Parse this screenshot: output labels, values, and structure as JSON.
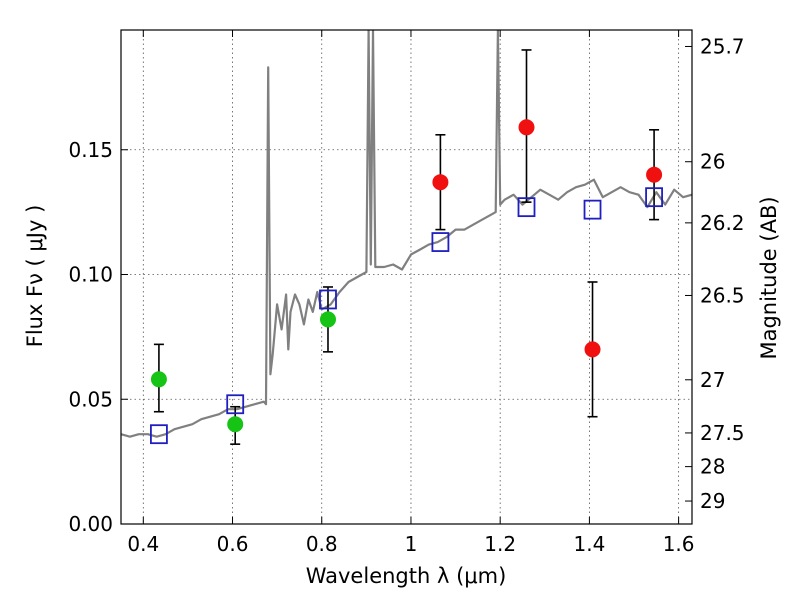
{
  "chart_data": {
    "type": "scatter",
    "xlabel": "Wavelength  λ (μm)",
    "ylabel": "Flux  Fν  ( μJy )",
    "ylabel_right": "Magnitude (AB)",
    "xlim": [
      0.35,
      1.63
    ],
    "ylim": [
      0.0,
      0.198
    ],
    "grid": true,
    "x_ticks": [
      0.4,
      0.6,
      0.8,
      1.0,
      1.2,
      1.4,
      1.6
    ],
    "x_tick_labels": [
      "0.4",
      "0.6",
      "0.8",
      "1",
      "1.2",
      "1.4",
      "1.6"
    ],
    "y_ticks": [
      0.0,
      0.05,
      0.1,
      0.15
    ],
    "y_tick_labels": [
      "0.00",
      "0.05",
      "0.10",
      "0.15"
    ],
    "right_ticks": [
      {
        "label": "25.7",
        "flux": 0.1914
      },
      {
        "label": "26",
        "flux": 0.1452
      },
      {
        "label": "26.2",
        "flux": 0.1207
      },
      {
        "label": "26.5",
        "flux": 0.0916
      },
      {
        "label": "27",
        "flux": 0.0578
      },
      {
        "label": "27.5",
        "flux": 0.0365
      },
      {
        "label": "28",
        "flux": 0.023
      },
      {
        "label": "29",
        "flux": 0.0092
      }
    ],
    "colors": {
      "spectrum": "#808080",
      "green": "#16c416",
      "red": "#f01010",
      "model": "#1f1fbf",
      "errorbar": "#000000",
      "grid": "#555555"
    },
    "spectrum": {
      "name": "",
      "x": [
        0.35,
        0.37,
        0.39,
        0.41,
        0.43,
        0.45,
        0.47,
        0.49,
        0.51,
        0.53,
        0.55,
        0.57,
        0.59,
        0.61,
        0.63,
        0.65,
        0.67,
        0.675,
        0.68,
        0.685,
        0.69,
        0.7,
        0.71,
        0.72,
        0.725,
        0.73,
        0.74,
        0.75,
        0.76,
        0.77,
        0.78,
        0.79,
        0.8,
        0.82,
        0.84,
        0.86,
        0.88,
        0.9,
        0.905,
        0.91,
        0.915,
        0.92,
        0.94,
        0.96,
        0.98,
        1.0,
        1.02,
        1.04,
        1.06,
        1.08,
        1.1,
        1.12,
        1.14,
        1.16,
        1.18,
        1.19,
        1.195,
        1.2,
        1.21,
        1.23,
        1.25,
        1.27,
        1.29,
        1.31,
        1.33,
        1.35,
        1.37,
        1.39,
        1.41,
        1.43,
        1.45,
        1.47,
        1.49,
        1.51,
        1.53,
        1.55,
        1.57,
        1.59,
        1.61,
        1.63
      ],
      "y": [
        0.036,
        0.035,
        0.036,
        0.036,
        0.035,
        0.036,
        0.038,
        0.039,
        0.04,
        0.042,
        0.043,
        0.044,
        0.046,
        0.046,
        0.047,
        0.048,
        0.049,
        0.048,
        0.183,
        0.06,
        0.068,
        0.088,
        0.078,
        0.092,
        0.07,
        0.085,
        0.092,
        0.088,
        0.08,
        0.09,
        0.085,
        0.093,
        0.086,
        0.088,
        0.093,
        0.097,
        0.099,
        0.101,
        0.198,
        0.104,
        0.198,
        0.103,
        0.103,
        0.104,
        0.102,
        0.108,
        0.11,
        0.112,
        0.113,
        0.115,
        0.118,
        0.118,
        0.12,
        0.122,
        0.124,
        0.125,
        0.198,
        0.128,
        0.13,
        0.132,
        0.128,
        0.131,
        0.134,
        0.132,
        0.13,
        0.133,
        0.135,
        0.136,
        0.138,
        0.131,
        0.133,
        0.135,
        0.133,
        0.132,
        0.127,
        0.133,
        0.128,
        0.134,
        0.131,
        0.132
      ]
    },
    "series": [
      {
        "name": "",
        "marker": "circle",
        "color": "#16c416",
        "points": [
          {
            "x": 0.435,
            "y": 0.058,
            "lo": 0.045,
            "hi": 0.072
          },
          {
            "x": 0.606,
            "y": 0.04,
            "lo": 0.032,
            "hi": 0.047
          },
          {
            "x": 0.814,
            "y": 0.082,
            "lo": 0.069,
            "hi": 0.095
          }
        ]
      },
      {
        "name": "",
        "marker": "circle",
        "color": "#f01010",
        "points": [
          {
            "x": 1.066,
            "y": 0.137,
            "lo": 0.118,
            "hi": 0.156
          },
          {
            "x": 1.259,
            "y": 0.159,
            "lo": 0.129,
            "hi": 0.19
          },
          {
            "x": 1.407,
            "y": 0.07,
            "lo": 0.043,
            "hi": 0.097
          },
          {
            "x": 1.545,
            "y": 0.14,
            "lo": 0.122,
            "hi": 0.158
          }
        ]
      },
      {
        "name": "",
        "marker": "square",
        "color": "#1f1fbf",
        "points": [
          {
            "x": 0.435,
            "y": 0.036
          },
          {
            "x": 0.606,
            "y": 0.048
          },
          {
            "x": 0.814,
            "y": 0.09
          },
          {
            "x": 1.066,
            "y": 0.113
          },
          {
            "x": 1.259,
            "y": 0.127
          },
          {
            "x": 1.407,
            "y": 0.126
          },
          {
            "x": 1.545,
            "y": 0.131
          }
        ]
      }
    ]
  }
}
